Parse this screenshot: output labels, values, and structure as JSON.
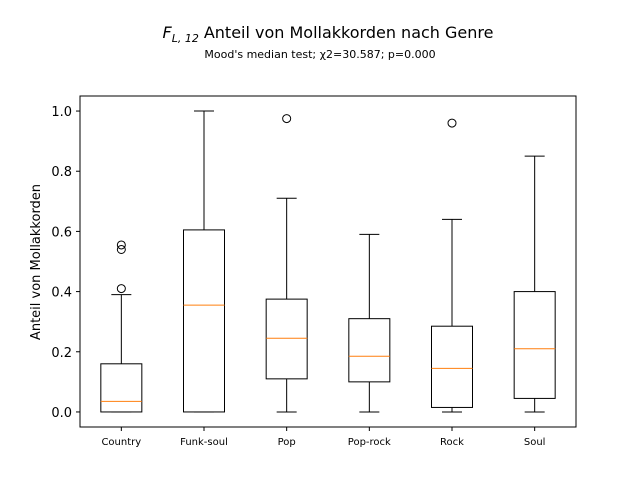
{
  "chart_data": {
    "type": "box",
    "title": {
      "symbol": "F",
      "subscript": "L, 12",
      "text": "Anteil von Mollakkorden nach Genre"
    },
    "subtitle": "Mood's median test; χ2=30.587; p=0.000",
    "ylabel": "Anteil von Mollakkorden",
    "xlabel": "",
    "ylim": [
      -0.05,
      1.05
    ],
    "yticks": [
      0.0,
      0.2,
      0.4,
      0.6,
      0.8,
      1.0
    ],
    "ytick_labels": [
      "0.0",
      "0.2",
      "0.4",
      "0.6",
      "0.8",
      "1.0"
    ],
    "grid": false,
    "colors": {
      "box": "#000000",
      "median": "#ff7f0e",
      "flier": "#000000"
    },
    "categories": [
      "Country",
      "Funk-soul",
      "Pop",
      "Pop-rock",
      "Rock",
      "Soul"
    ],
    "boxes": [
      {
        "category": "Country",
        "whisker_low": 0.0,
        "q1": 0.0,
        "median": 0.035,
        "q3": 0.16,
        "whisker_high": 0.39,
        "fliers": [
          0.41,
          0.54,
          0.555
        ]
      },
      {
        "category": "Funk-soul",
        "whisker_low": 0.0,
        "q1": 0.0,
        "median": 0.355,
        "q3": 0.605,
        "whisker_high": 1.0,
        "fliers": []
      },
      {
        "category": "Pop",
        "whisker_low": 0.0,
        "q1": 0.11,
        "median": 0.245,
        "q3": 0.375,
        "whisker_high": 0.71,
        "fliers": [
          0.975
        ]
      },
      {
        "category": "Pop-rock",
        "whisker_low": 0.0,
        "q1": 0.1,
        "median": 0.185,
        "q3": 0.31,
        "whisker_high": 0.59,
        "fliers": []
      },
      {
        "category": "Rock",
        "whisker_low": 0.0,
        "q1": 0.015,
        "median": 0.145,
        "q3": 0.285,
        "whisker_high": 0.64,
        "fliers": [
          0.96
        ]
      },
      {
        "category": "Soul",
        "whisker_low": 0.0,
        "q1": 0.045,
        "median": 0.21,
        "q3": 0.4,
        "whisker_high": 0.85,
        "fliers": []
      }
    ]
  }
}
